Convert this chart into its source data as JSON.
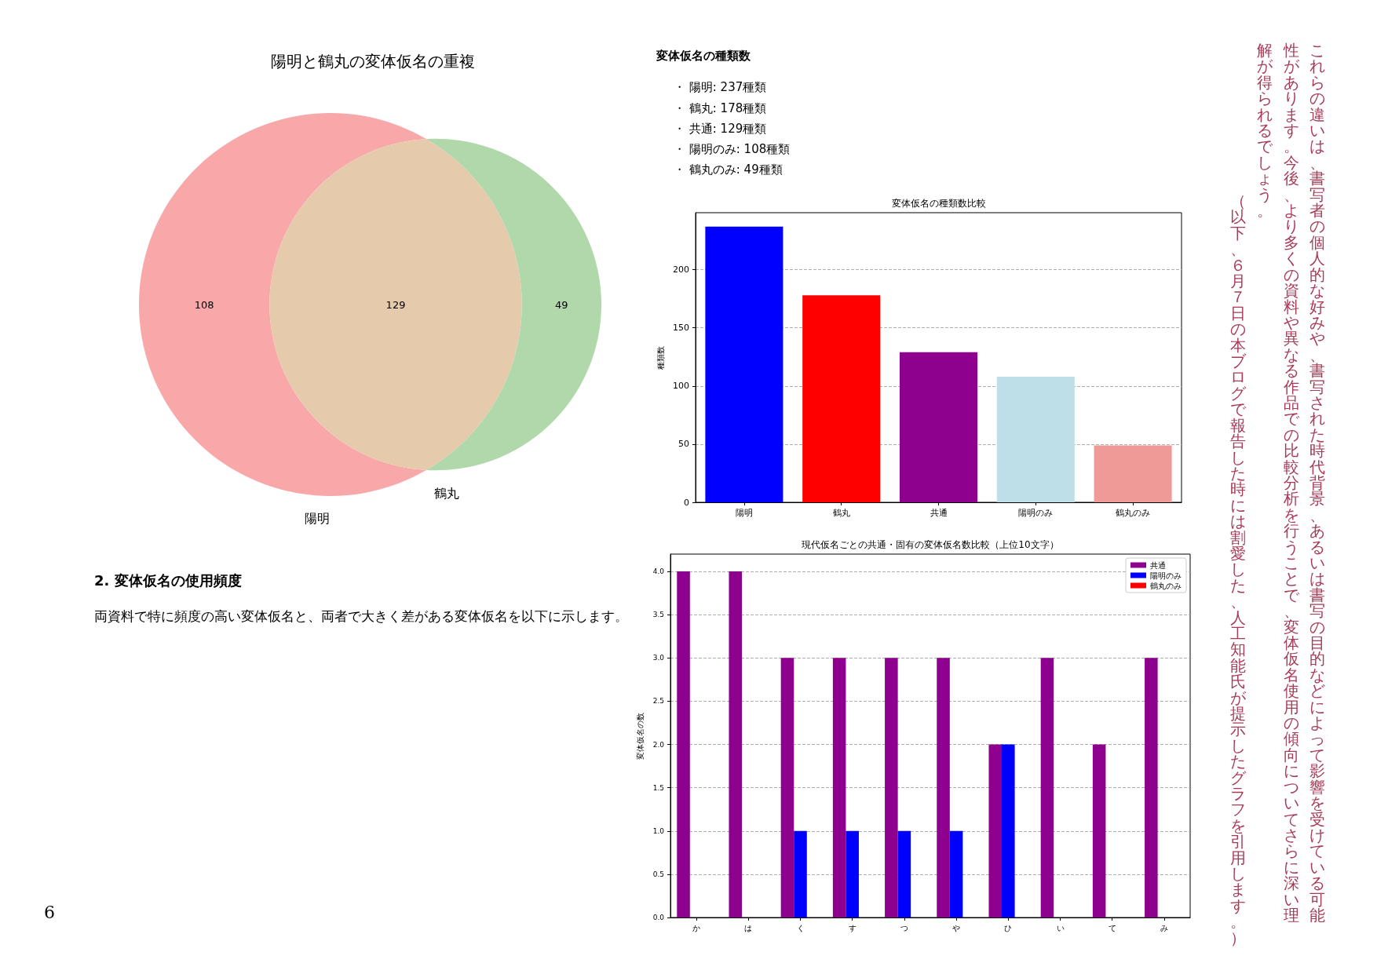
{
  "chart_data": [
    {
      "type": "other",
      "title": "陽明と鶴丸の変体仮名の重複",
      "values": [
        108,
        129,
        49
      ],
      "colors": [
        "#f8a8a8",
        "#e5cbab",
        "#b0d8ab"
      ],
      "data_labels": true,
      "annotations": [
        "陽明",
        "鶴丸"
      ]
    },
    {
      "type": "other",
      "title": "変体仮名の種類数",
      "annotations": [
        "・ 陽明: 237種類",
        "・ 鶴丸: 178種類",
        "・ 共通: 129種類",
        "・ 陽明のみ: 108種類",
        "・ 鶴丸のみ: 49種類"
      ]
    },
    {
      "type": "bar",
      "title": "変体仮名の種類数比較",
      "ylabel": "種類数",
      "categories": [
        "陽明",
        "鶴丸",
        "共通",
        "陽明のみ",
        "鶴丸のみ"
      ],
      "values": [
        237,
        178,
        129,
        108,
        49
      ],
      "colors": [
        "#0000ff",
        "#ff0000",
        "#8e008e",
        "#bfdfe8",
        "#f09a98"
      ],
      "ylim": [
        0,
        249
      ],
      "yticks": [
        0,
        50,
        100,
        150,
        200
      ],
      "grid": "y"
    },
    {
      "type": "other",
      "title": "2. 変体仮名の使用頻度",
      "annotations": [
        "両資料で特に頻度の高い変体仮名と、両者で大きく差がある変体仮名を以下に示します。"
      ]
    },
    {
      "type": "bar",
      "title": "現代仮名ごとの共通・固有の変体仮名数比較（上位10文字）",
      "ylabel": "変体仮名の数",
      "categories": [
        "か",
        "は",
        "く",
        "す",
        "つ",
        "や",
        "ひ",
        "い",
        "て",
        "み"
      ],
      "series": [
        {
          "name": "共通",
          "color": "#8e008e",
          "values": [
            4,
            4,
            3,
            3,
            3,
            3,
            2,
            3,
            2,
            3
          ]
        },
        {
          "name": "陽明のみ",
          "color": "#0000ff",
          "values": [
            0,
            0,
            1,
            1,
            1,
            1,
            2,
            0,
            0,
            0
          ]
        },
        {
          "name": "鶴丸のみ",
          "color": "#ff0000",
          "values": [
            0,
            0,
            0,
            0,
            0,
            0,
            0,
            0,
            0,
            0
          ]
        }
      ],
      "ylim": [
        0,
        4.2
      ],
      "yticks": [
        {
          "value": 0,
          "label": "0.0"
        },
        0.5,
        {
          "value": 1,
          "label": "1.0"
        },
        1.5,
        {
          "value": 2,
          "label": "2.0"
        },
        2.5,
        {
          "value": 3,
          "label": "3.0"
        },
        3.5,
        {
          "value": 4,
          "label": "4.0"
        }
      ],
      "grid": "y",
      "legend": "top right"
    },
    {
      "type": "other",
      "annotations": [
        "これらの違いは、書写者の個人的な好みや、書写された時代背景、あるいは書写の目的などによって影響を受けている可能性があります。今後、より多くの資料や異なる作品での比較分析を行うことで、変体仮名使用の傾向についてさらに深い理解が得られるでしょう。",
        "（以下、６月７日の本ブログで報告した時には割愛した、人工知能氏が提示したグラフを引用します。）"
      ]
    },
    {
      "type": "other",
      "annotations": [
        "6"
      ]
    }
  ]
}
